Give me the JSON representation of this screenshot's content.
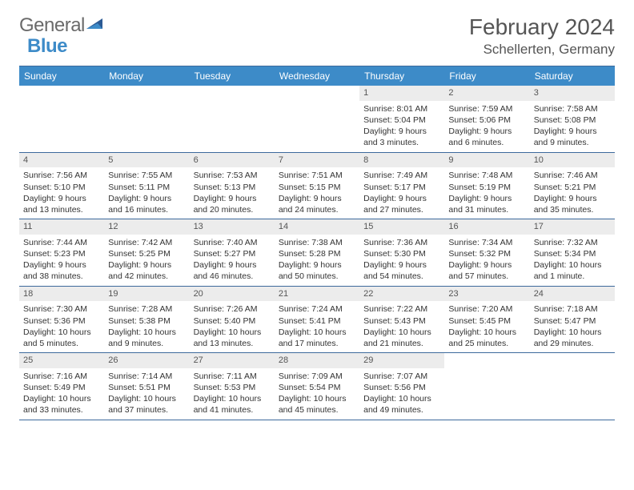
{
  "logo": {
    "text1": "General",
    "text2": "Blue"
  },
  "title": "February 2024",
  "location": "Schellerten, Germany",
  "day_headers": [
    "Sunday",
    "Monday",
    "Tuesday",
    "Wednesday",
    "Thursday",
    "Friday",
    "Saturday"
  ],
  "colors": {
    "header_bg": "#3d8bc8",
    "header_text": "#ffffff",
    "border": "#3d6a9c",
    "daynum_bg": "#ececec",
    "text": "#333333",
    "logo_gray": "#6a6a6a",
    "logo_blue": "#3d8bc8"
  },
  "weeks": [
    [
      {
        "empty": true
      },
      {
        "empty": true
      },
      {
        "empty": true
      },
      {
        "empty": true
      },
      {
        "num": "1",
        "sunrise": "Sunrise: 8:01 AM",
        "sunset": "Sunset: 5:04 PM",
        "daylight1": "Daylight: 9 hours",
        "daylight2": "and 3 minutes."
      },
      {
        "num": "2",
        "sunrise": "Sunrise: 7:59 AM",
        "sunset": "Sunset: 5:06 PM",
        "daylight1": "Daylight: 9 hours",
        "daylight2": "and 6 minutes."
      },
      {
        "num": "3",
        "sunrise": "Sunrise: 7:58 AM",
        "sunset": "Sunset: 5:08 PM",
        "daylight1": "Daylight: 9 hours",
        "daylight2": "and 9 minutes."
      }
    ],
    [
      {
        "num": "4",
        "sunrise": "Sunrise: 7:56 AM",
        "sunset": "Sunset: 5:10 PM",
        "daylight1": "Daylight: 9 hours",
        "daylight2": "and 13 minutes."
      },
      {
        "num": "5",
        "sunrise": "Sunrise: 7:55 AM",
        "sunset": "Sunset: 5:11 PM",
        "daylight1": "Daylight: 9 hours",
        "daylight2": "and 16 minutes."
      },
      {
        "num": "6",
        "sunrise": "Sunrise: 7:53 AM",
        "sunset": "Sunset: 5:13 PM",
        "daylight1": "Daylight: 9 hours",
        "daylight2": "and 20 minutes."
      },
      {
        "num": "7",
        "sunrise": "Sunrise: 7:51 AM",
        "sunset": "Sunset: 5:15 PM",
        "daylight1": "Daylight: 9 hours",
        "daylight2": "and 24 minutes."
      },
      {
        "num": "8",
        "sunrise": "Sunrise: 7:49 AM",
        "sunset": "Sunset: 5:17 PM",
        "daylight1": "Daylight: 9 hours",
        "daylight2": "and 27 minutes."
      },
      {
        "num": "9",
        "sunrise": "Sunrise: 7:48 AM",
        "sunset": "Sunset: 5:19 PM",
        "daylight1": "Daylight: 9 hours",
        "daylight2": "and 31 minutes."
      },
      {
        "num": "10",
        "sunrise": "Sunrise: 7:46 AM",
        "sunset": "Sunset: 5:21 PM",
        "daylight1": "Daylight: 9 hours",
        "daylight2": "and 35 minutes."
      }
    ],
    [
      {
        "num": "11",
        "sunrise": "Sunrise: 7:44 AM",
        "sunset": "Sunset: 5:23 PM",
        "daylight1": "Daylight: 9 hours",
        "daylight2": "and 38 minutes."
      },
      {
        "num": "12",
        "sunrise": "Sunrise: 7:42 AM",
        "sunset": "Sunset: 5:25 PM",
        "daylight1": "Daylight: 9 hours",
        "daylight2": "and 42 minutes."
      },
      {
        "num": "13",
        "sunrise": "Sunrise: 7:40 AM",
        "sunset": "Sunset: 5:27 PM",
        "daylight1": "Daylight: 9 hours",
        "daylight2": "and 46 minutes."
      },
      {
        "num": "14",
        "sunrise": "Sunrise: 7:38 AM",
        "sunset": "Sunset: 5:28 PM",
        "daylight1": "Daylight: 9 hours",
        "daylight2": "and 50 minutes."
      },
      {
        "num": "15",
        "sunrise": "Sunrise: 7:36 AM",
        "sunset": "Sunset: 5:30 PM",
        "daylight1": "Daylight: 9 hours",
        "daylight2": "and 54 minutes."
      },
      {
        "num": "16",
        "sunrise": "Sunrise: 7:34 AM",
        "sunset": "Sunset: 5:32 PM",
        "daylight1": "Daylight: 9 hours",
        "daylight2": "and 57 minutes."
      },
      {
        "num": "17",
        "sunrise": "Sunrise: 7:32 AM",
        "sunset": "Sunset: 5:34 PM",
        "daylight1": "Daylight: 10 hours",
        "daylight2": "and 1 minute."
      }
    ],
    [
      {
        "num": "18",
        "sunrise": "Sunrise: 7:30 AM",
        "sunset": "Sunset: 5:36 PM",
        "daylight1": "Daylight: 10 hours",
        "daylight2": "and 5 minutes."
      },
      {
        "num": "19",
        "sunrise": "Sunrise: 7:28 AM",
        "sunset": "Sunset: 5:38 PM",
        "daylight1": "Daylight: 10 hours",
        "daylight2": "and 9 minutes."
      },
      {
        "num": "20",
        "sunrise": "Sunrise: 7:26 AM",
        "sunset": "Sunset: 5:40 PM",
        "daylight1": "Daylight: 10 hours",
        "daylight2": "and 13 minutes."
      },
      {
        "num": "21",
        "sunrise": "Sunrise: 7:24 AM",
        "sunset": "Sunset: 5:41 PM",
        "daylight1": "Daylight: 10 hours",
        "daylight2": "and 17 minutes."
      },
      {
        "num": "22",
        "sunrise": "Sunrise: 7:22 AM",
        "sunset": "Sunset: 5:43 PM",
        "daylight1": "Daylight: 10 hours",
        "daylight2": "and 21 minutes."
      },
      {
        "num": "23",
        "sunrise": "Sunrise: 7:20 AM",
        "sunset": "Sunset: 5:45 PM",
        "daylight1": "Daylight: 10 hours",
        "daylight2": "and 25 minutes."
      },
      {
        "num": "24",
        "sunrise": "Sunrise: 7:18 AM",
        "sunset": "Sunset: 5:47 PM",
        "daylight1": "Daylight: 10 hours",
        "daylight2": "and 29 minutes."
      }
    ],
    [
      {
        "num": "25",
        "sunrise": "Sunrise: 7:16 AM",
        "sunset": "Sunset: 5:49 PM",
        "daylight1": "Daylight: 10 hours",
        "daylight2": "and 33 minutes."
      },
      {
        "num": "26",
        "sunrise": "Sunrise: 7:14 AM",
        "sunset": "Sunset: 5:51 PM",
        "daylight1": "Daylight: 10 hours",
        "daylight2": "and 37 minutes."
      },
      {
        "num": "27",
        "sunrise": "Sunrise: 7:11 AM",
        "sunset": "Sunset: 5:53 PM",
        "daylight1": "Daylight: 10 hours",
        "daylight2": "and 41 minutes."
      },
      {
        "num": "28",
        "sunrise": "Sunrise: 7:09 AM",
        "sunset": "Sunset: 5:54 PM",
        "daylight1": "Daylight: 10 hours",
        "daylight2": "and 45 minutes."
      },
      {
        "num": "29",
        "sunrise": "Sunrise: 7:07 AM",
        "sunset": "Sunset: 5:56 PM",
        "daylight1": "Daylight: 10 hours",
        "daylight2": "and 49 minutes."
      },
      {
        "empty": true
      },
      {
        "empty": true
      }
    ]
  ]
}
